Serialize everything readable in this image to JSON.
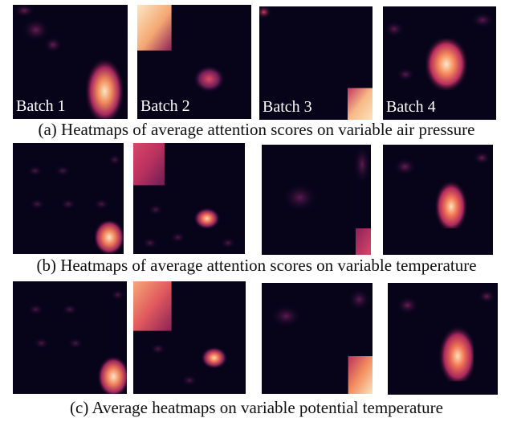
{
  "figure": {
    "batch_labels": [
      "Batch 1",
      "Batch 2",
      "Batch 3",
      "Batch 4"
    ],
    "rows": [
      {
        "caption": "(a) Heatmaps of average attention scores on variable air pressure"
      },
      {
        "caption": "(b) Heatmaps of average attention scores on variable temperature"
      },
      {
        "caption": "(c) Average heatmaps  on variable potential temperature"
      }
    ]
  },
  "colors": {
    "background": "#07041a",
    "low": "#2a0b33",
    "mid": "#6b1d56",
    "high": "#d9476a",
    "peak": "#fcecc9"
  }
}
